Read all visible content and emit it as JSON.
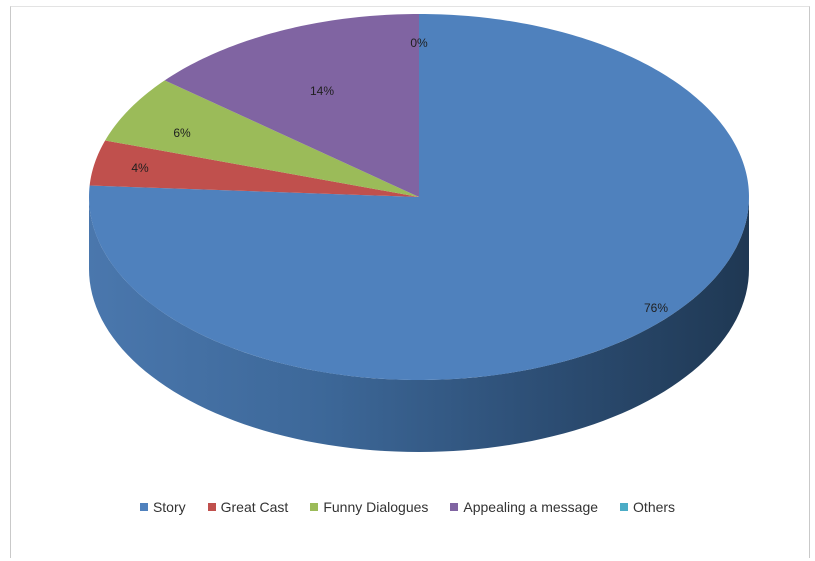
{
  "chart_data": {
    "type": "pie",
    "categories": [
      "Story",
      "Great Cast",
      "Funny Dialogues",
      "Appealing a message",
      "Others"
    ],
    "values": [
      76,
      4,
      6,
      14,
      0
    ],
    "data_labels": [
      "76%",
      "4%",
      "6%",
      "14%",
      "0%"
    ],
    "colors": [
      "#4f81bd",
      "#c0504d",
      "#9bbb59",
      "#8064a2",
      "#4bacc6"
    ],
    "legend_position": "bottom",
    "style": "3d-pie"
  }
}
